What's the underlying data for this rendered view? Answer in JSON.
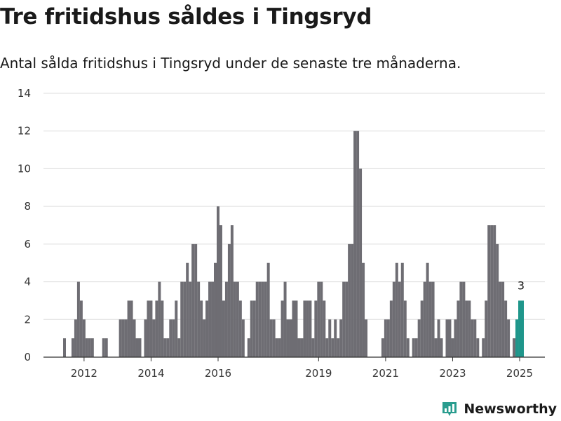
{
  "header": {
    "title": "Tre fritidshus såldes i Tingsryd",
    "subtitle": "Antal sålda fritidshus i Tingsryd under de senaste tre månaderna."
  },
  "brand": {
    "name": "Newsworthy",
    "color": "#2a9d8f"
  },
  "colors": {
    "bar": "#6e6d73",
    "highlight": "#1f968b",
    "grid": "#dddddd",
    "axis": "#333333"
  },
  "chart_data": {
    "type": "bar",
    "title": "Tre fritidshus såldes i Tingsryd",
    "subtitle": "Antal sålda fritidshus i Tingsryd under de senaste tre månaderna.",
    "xlabel": "",
    "ylabel": "",
    "ylim": [
      0,
      14
    ],
    "y_ticks": [
      0,
      2,
      4,
      6,
      8,
      10,
      12,
      14
    ],
    "x_ticks": [
      "2012",
      "2014",
      "2016",
      "2019",
      "2021",
      "2023",
      "2025"
    ],
    "x_tick_index": [
      7,
      31,
      55,
      91,
      115,
      139,
      163
    ],
    "grid": true,
    "legend": "none",
    "highlight_label": "3",
    "values": [
      1,
      0,
      0,
      1,
      2,
      4,
      3,
      2,
      1,
      1,
      1,
      0,
      0,
      0,
      1,
      1,
      0,
      0,
      0,
      0,
      2,
      2,
      2,
      3,
      3,
      2,
      1,
      1,
      0,
      2,
      3,
      3,
      2,
      3,
      4,
      3,
      1,
      1,
      2,
      2,
      3,
      1,
      4,
      4,
      5,
      4,
      6,
      6,
      4,
      3,
      2,
      3,
      4,
      4,
      5,
      8,
      7,
      3,
      4,
      6,
      7,
      4,
      4,
      3,
      2,
      0,
      1,
      3,
      3,
      4,
      4,
      4,
      4,
      5,
      2,
      2,
      1,
      1,
      3,
      4,
      2,
      2,
      3,
      3,
      1,
      1,
      3,
      3,
      3,
      1,
      3,
      4,
      4,
      3,
      1,
      2,
      1,
      2,
      1,
      2,
      4,
      4,
      6,
      6,
      12,
      12,
      10,
      5,
      2,
      0,
      0,
      0,
      0,
      0,
      1,
      2,
      2,
      3,
      4,
      5,
      4,
      5,
      3,
      1,
      0,
      1,
      1,
      2,
      3,
      4,
      5,
      4,
      4,
      1,
      2,
      1,
      0,
      2,
      2,
      1,
      2,
      3,
      4,
      4,
      3,
      3,
      2,
      2,
      1,
      0,
      1,
      3,
      7,
      7,
      7,
      6,
      4,
      4,
      3,
      2,
      0,
      1,
      2,
      3,
      3
    ],
    "last_three_highlighted": true
  }
}
